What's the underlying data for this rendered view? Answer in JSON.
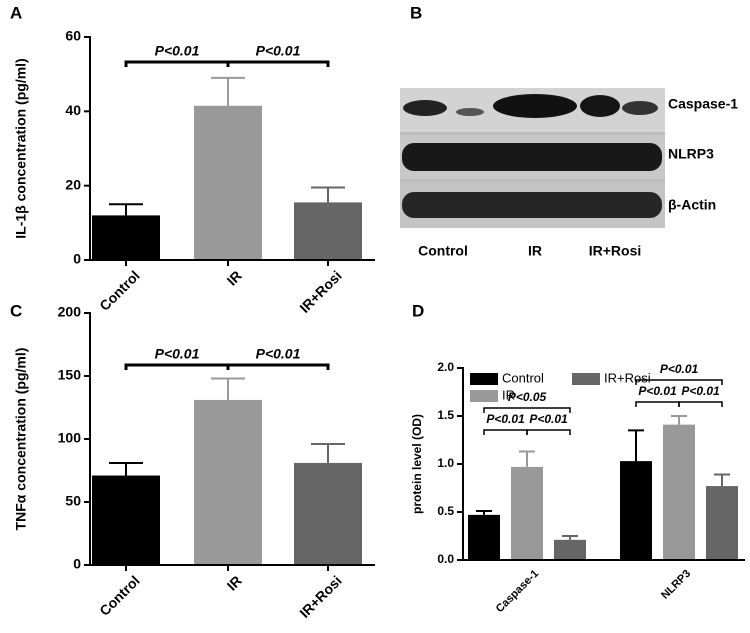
{
  "chart_data": [
    {
      "type": "bar",
      "panel": "A",
      "ylabel": "IL-1β concentration (pg/ml)",
      "categories": [
        "Control",
        "IR",
        "IR+Rosi"
      ],
      "values": [
        12,
        41.5,
        15.5
      ],
      "errors": [
        3,
        7.5,
        4
      ],
      "colors": [
        "#000000",
        "#999999",
        "#666666"
      ],
      "ylim": [
        0,
        60
      ],
      "yticks": [
        0,
        20,
        40,
        60
      ],
      "annotations": [
        "P<0.01",
        "P<0.01"
      ]
    },
    {
      "type": "bar",
      "panel": "C",
      "ylabel": "TNFα concentration (pg/ml)",
      "categories": [
        "Control",
        "IR",
        "IR+Rosi"
      ],
      "values": [
        71,
        131,
        81
      ],
      "errors": [
        10,
        17,
        15
      ],
      "colors": [
        "#000000",
        "#999999",
        "#666666"
      ],
      "ylim": [
        0,
        200
      ],
      "yticks": [
        0,
        50,
        100,
        150,
        200
      ],
      "annotations": [
        "P<0.01",
        "P<0.01"
      ]
    },
    {
      "type": "grouped_bar",
      "panel": "D",
      "ylabel": "protein level (OD)",
      "categories": [
        "Caspase-1",
        "NLRP3"
      ],
      "series": [
        {
          "name": "Control",
          "color": "#000000",
          "values": [
            0.47,
            1.03
          ],
          "errors": [
            0.04,
            0.32
          ]
        },
        {
          "name": "IR",
          "color": "#999999",
          "values": [
            0.97,
            1.41
          ],
          "errors": [
            0.16,
            0.09
          ]
        },
        {
          "name": "IR+Rosi",
          "color": "#666666",
          "values": [
            0.21,
            0.77
          ],
          "errors": [
            0.04,
            0.12
          ]
        }
      ],
      "ylim": [
        0,
        2
      ],
      "yticks": [
        {
          "value": 0,
          "label": "0.0"
        },
        {
          "value": 0.5,
          "label": "0.5"
        },
        {
          "value": 1,
          "label": "1.0"
        },
        {
          "value": 1.5,
          "label": "1.5"
        },
        {
          "value": 2,
          "label": "2.0"
        }
      ],
      "annotations": [
        "P<0.05",
        "P<0.01",
        "P<0.01",
        "P<0.01",
        "P<0.01",
        "P<0.01"
      ]
    }
  ],
  "blot": {
    "panel": "B",
    "rows": [
      "Caspase-1",
      "NLRP3",
      "β-Actin"
    ],
    "columns": [
      "Control",
      "IR",
      "IR+Rosi"
    ]
  }
}
